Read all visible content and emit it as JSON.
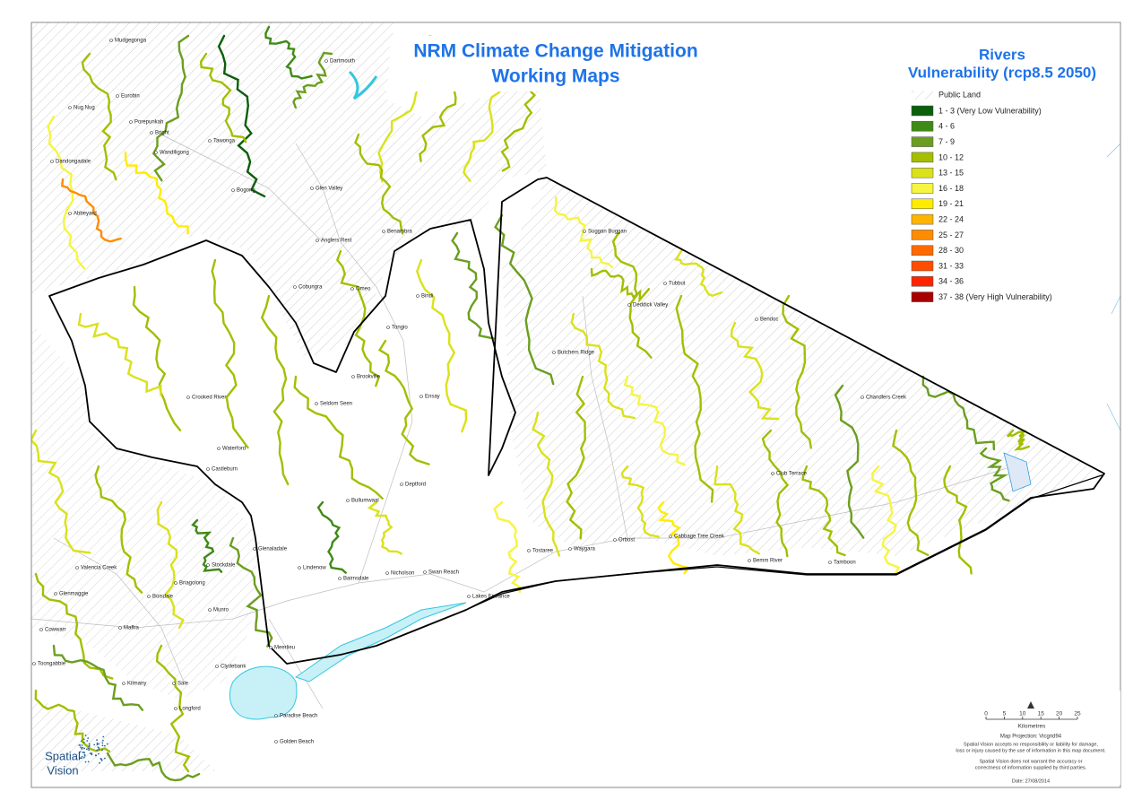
{
  "map": {
    "title": [
      "NRM Climate Change Mitigation",
      "Working Maps"
    ],
    "legend": {
      "title": [
        "Rivers",
        "Vulnerability (rcp8.5 2050)"
      ],
      "public_land": "Public Land",
      "classes": [
        {
          "label": "1 - 3 (Very Low Vulnerability)",
          "color": "#0b5e0b"
        },
        {
          "label": "4 - 6",
          "color": "#3f8a16"
        },
        {
          "label": "7 - 9",
          "color": "#6b9e1f"
        },
        {
          "label": "10 - 12",
          "color": "#a4be00"
        },
        {
          "label": "13 - 15",
          "color": "#d9e21a"
        },
        {
          "label": "16 - 18",
          "color": "#f5f542"
        },
        {
          "label": "19 - 21",
          "color": "#ffec00"
        },
        {
          "label": "22 - 24",
          "color": "#ffb400"
        },
        {
          "label": "25 - 27",
          "color": "#ff8c00"
        },
        {
          "label": "28 - 30",
          "color": "#ff6a00"
        },
        {
          "label": "31 - 33",
          "color": "#ff4d00"
        },
        {
          "label": "34 - 36",
          "color": "#ff2400"
        },
        {
          "label": "37 - 38 (Very High Vulnerability)",
          "color": "#a80000"
        }
      ]
    },
    "places": [
      "Dartmouth",
      "Mudgegonga",
      "Eurobin",
      "Nug Nug",
      "Porepunkah",
      "Bright",
      "Wandiligong",
      "Dandongadale",
      "Abbeyard",
      "Tawonga",
      "Bogong",
      "Glen Valley",
      "Anglers Rest",
      "Benambra",
      "Omeo",
      "Cobungra",
      "Bindi",
      "Tongio",
      "Brookville",
      "Ensay",
      "Seldom Seen",
      "Suggan Buggan",
      "Deddick Valley",
      "Tubbut",
      "Bendoc",
      "Butchers Ridge",
      "Chandlers Creek",
      "Club Terrace",
      "Orbost",
      "Tostaree",
      "Waygara",
      "Cabbage Tree Creek",
      "Bemm River",
      "Tamboon",
      "Lakes Entrance",
      "Swan Reach",
      "Nicholson",
      "Bairnsdale",
      "Lindenow",
      "Glenaladale",
      "Bullumwaal",
      "Deptford",
      "Waterford",
      "Castleburn",
      "Crooked River",
      "Stockdale",
      "Valencia Creek",
      "Briagolong",
      "Boisdale",
      "Munro",
      "Glenmaggie",
      "Maffra",
      "Cowwarr",
      "Toongabbie",
      "Kilmany",
      "Sale",
      "Clydebank",
      "Meerlieu",
      "Longford",
      "Paradise Beach",
      "Golden Beach"
    ],
    "scale": {
      "ticks": [
        0,
        5,
        10,
        15,
        20,
        25
      ],
      "unit": "Kilometres"
    },
    "projection": "Map Projection: Vicgrid94",
    "disclaimer": [
      "Spatial Vision accepts no responsibility or liability for damage,",
      "loss or injury caused by the use of information in this map document."
    ],
    "warranty": [
      "Spatial Vision does not warrant the accuracy or",
      "correctness of information supplied by third parties."
    ],
    "date": "Date: 27/08/2014",
    "logo": [
      "Spatial",
      "Vision"
    ]
  }
}
